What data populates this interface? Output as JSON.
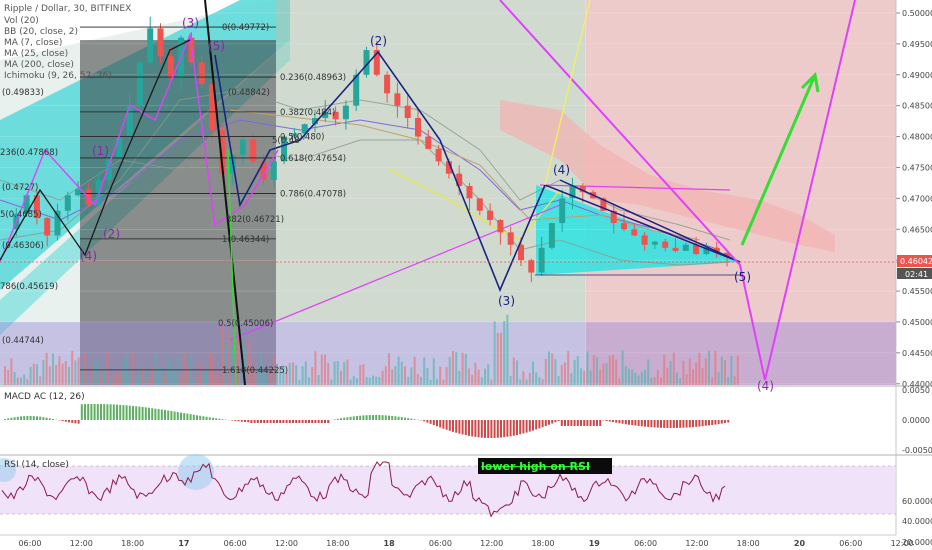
{
  "header": {
    "symbol_line": "Ripple / Dollar, 30, BITFINEX",
    "indicators": [
      "Vol (20)",
      "BB (20, close, 2)",
      "MA (7, close)",
      "MA (25, close)",
      "MA (200, close)",
      "Ichimoku (9, 26, 52, 26)"
    ]
  },
  "panes": {
    "macd_label": "MACD AC (12, 26)",
    "rsi_label": "RSI (14, close)"
  },
  "chart_data": {
    "type": "candlestick",
    "title": "Ripple / Dollar, 30, BITFINEX",
    "price_axis": {
      "ticks": [
        "0.50000",
        "0.49500",
        "0.49000",
        "0.48500",
        "0.48000",
        "0.47500",
        "0.47000",
        "0.46500",
        "0.46000",
        "0.45500",
        "0.45000",
        "0.44500",
        "0.44000"
      ],
      "range": [
        0.4398,
        0.5021
      ]
    },
    "current_price": "0.46042",
    "countdown": "02:41",
    "time_axis": [
      "06:00",
      "12:00",
      "18:00",
      "17",
      "06:00",
      "12:00",
      "18:00",
      "18",
      "06:00",
      "12:00",
      "18:00",
      "19",
      "06:00",
      "12:00",
      "18:00",
      "20",
      "06:00",
      "12:00"
    ],
    "fib_levels": [
      {
        "ratio": "0",
        "price": "0.49772"
      },
      {
        "ratio": "0.236",
        "price": "0.48963"
      },
      {
        "ratio": "0.382",
        "price": "0.484"
      },
      {
        "ratio": "0.5",
        "price": "0.480"
      },
      {
        "ratio": "0.618",
        "price": "0.47654"
      },
      {
        "ratio": "0.786",
        "price": "0.47078"
      },
      {
        "ratio": "1",
        "price": "0.46344"
      },
      {
        "ratio": "1.618",
        "price": "0.44225"
      }
    ],
    "left_fib_labels": [
      "(0.49833)",
      "236(0.47868)",
      "(0.4727)",
      "5(0.4685)",
      "(0.46306)",
      "786(0.45619)",
      "(0.44744)",
      "(0.48842)",
      "5(0.48",
      "382(0.46721)",
      "0.5(0.45006)"
    ],
    "wave_labels": [
      "(1)",
      "(2)",
      "(3)",
      "(4)",
      "(5)",
      "(2)",
      "(3)",
      "(4)",
      "(5)",
      "(4)"
    ],
    "macd_axis": [
      "0.0050",
      "0.0000",
      "-0.0050"
    ],
    "rsi_axis": [
      "60.0000",
      "40.0000",
      "20.0000"
    ],
    "annotation": "lower high on RSI",
    "close_series": [
      0.465,
      0.4675,
      0.4705,
      0.4668,
      0.464,
      0.468,
      0.4705,
      0.4715,
      0.469,
      0.473,
      0.4765,
      0.48,
      0.485,
      0.492,
      0.4975,
      0.493,
      0.4895,
      0.496,
      0.492,
      0.4885,
      0.481,
      0.474,
      0.477,
      0.4795,
      0.476,
      0.473,
      0.476,
      0.48,
      0.4805,
      0.482,
      0.483,
      0.484,
      0.4828,
      0.485,
      0.49,
      0.494,
      0.49,
      0.487,
      0.485,
      0.483,
      0.48,
      0.478,
      0.476,
      0.474,
      0.472,
      0.47,
      0.468,
      0.4665,
      0.4645,
      0.4625,
      0.46,
      0.458,
      0.462,
      0.466,
      0.47,
      0.472,
      0.471,
      0.47,
      0.468,
      0.466,
      0.465,
      0.464,
      0.4625,
      0.463,
      0.462,
      0.4615,
      0.4625,
      0.461,
      0.462,
      0.4612,
      0.4605
    ]
  },
  "colors": {
    "bull": "#26a69a",
    "bear": "#ef5350",
    "wave_line": "#1a237e",
    "magenta": "#e040fb",
    "green_arrow": "#33dd33",
    "price_badge": "#ef5350",
    "annotation_bg": "#0b0b0b",
    "annotation_fg": "#33ff33"
  }
}
